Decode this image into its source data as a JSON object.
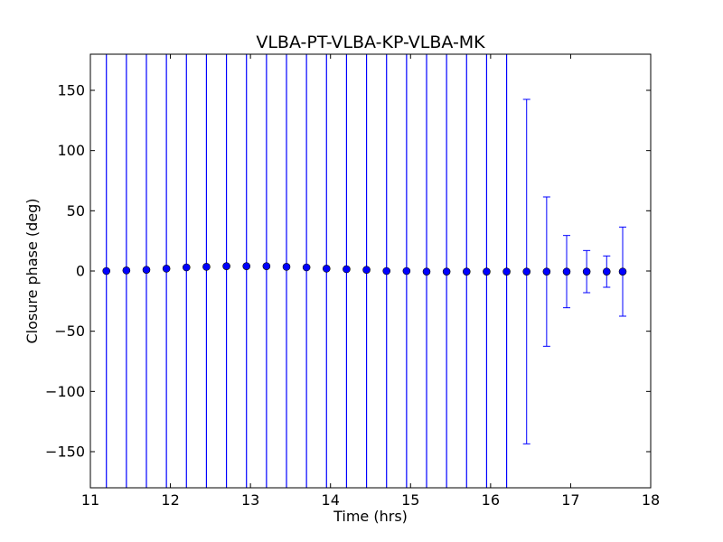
{
  "chart_data": {
    "type": "scatter",
    "title": "VLBA-PT-VLBA-KP-VLBA-MK",
    "xlabel": "Time (hrs)",
    "ylabel": "Closure phase (deg)",
    "xlim": [
      11,
      18
    ],
    "ylim": [
      -180,
      180
    ],
    "xticks": [
      11,
      12,
      13,
      14,
      15,
      16,
      17,
      18
    ],
    "xtick_labels": [
      "11",
      "12",
      "13",
      "14",
      "15",
      "16",
      "17",
      "18"
    ],
    "yticks": [
      150,
      100,
      50,
      0,
      -50,
      -100,
      -150
    ],
    "ytick_labels": [
      "150",
      "100",
      "50",
      "0",
      "−50",
      "−100",
      "−150"
    ],
    "grid": false,
    "marker_color": "#0000ff",
    "errorbar_color": "#0000ff",
    "points": [
      {
        "x": 11.2,
        "y": 0.0,
        "err": null
      },
      {
        "x": 11.45,
        "y": 0.5,
        "err": null
      },
      {
        "x": 11.7,
        "y": 1.0,
        "err": null
      },
      {
        "x": 11.95,
        "y": 2.0,
        "err": null
      },
      {
        "x": 12.2,
        "y": 3.0,
        "err": null
      },
      {
        "x": 12.45,
        "y": 3.5,
        "err": null
      },
      {
        "x": 12.7,
        "y": 4.0,
        "err": null
      },
      {
        "x": 12.95,
        "y": 4.0,
        "err": null
      },
      {
        "x": 13.2,
        "y": 4.0,
        "err": null
      },
      {
        "x": 13.45,
        "y": 3.5,
        "err": null
      },
      {
        "x": 13.7,
        "y": 3.0,
        "err": null
      },
      {
        "x": 13.95,
        "y": 2.0,
        "err": null
      },
      {
        "x": 14.2,
        "y": 1.5,
        "err": null
      },
      {
        "x": 14.45,
        "y": 1.0,
        "err": null
      },
      {
        "x": 14.7,
        "y": 0.0,
        "err": null
      },
      {
        "x": 14.95,
        "y": 0.0,
        "err": null
      },
      {
        "x": 15.2,
        "y": -0.5,
        "err": null
      },
      {
        "x": 15.45,
        "y": -0.5,
        "err": null
      },
      {
        "x": 15.7,
        "y": -0.5,
        "err": null
      },
      {
        "x": 15.95,
        "y": -0.5,
        "err": null
      },
      {
        "x": 16.2,
        "y": -0.5,
        "err": null
      },
      {
        "x": 16.45,
        "y": -0.5,
        "err": 143
      },
      {
        "x": 16.7,
        "y": -0.5,
        "err": 62
      },
      {
        "x": 16.95,
        "y": -0.5,
        "err": 30
      },
      {
        "x": 17.2,
        "y": -0.5,
        "err": 17.5
      },
      {
        "x": 17.45,
        "y": -0.5,
        "err": 13
      },
      {
        "x": 17.65,
        "y": -0.5,
        "err": 37
      }
    ]
  }
}
